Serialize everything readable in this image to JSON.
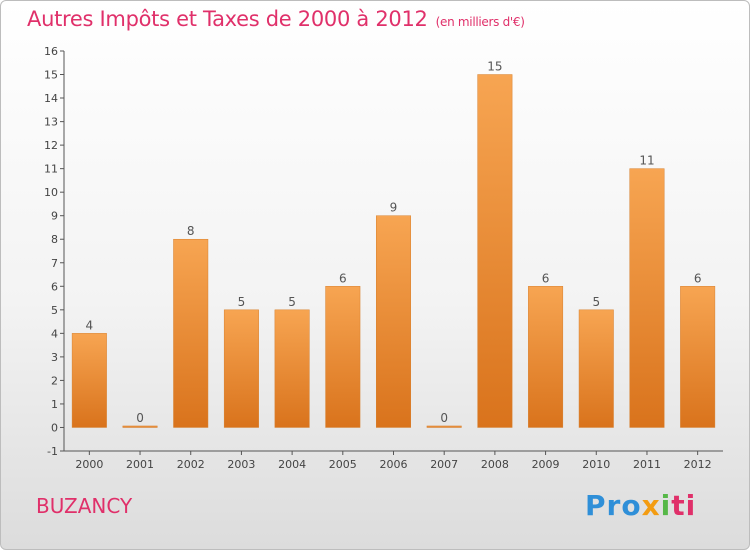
{
  "header": {
    "title": "Autres Impôts et Taxes de 2000 à 2012",
    "subtitle": "(en milliers d'€)"
  },
  "footer": {
    "commune": "BUZANCY",
    "logo": [
      "Pro",
      "x",
      "i",
      "ti"
    ]
  },
  "colors": {
    "accent": "#e0306a",
    "bar_top": "#f7a552",
    "bar_bottom": "#d9731c"
  },
  "chart_data": {
    "type": "bar",
    "categories": [
      "2000",
      "2001",
      "2002",
      "2003",
      "2004",
      "2005",
      "2006",
      "2007",
      "2008",
      "2009",
      "2010",
      "2011",
      "2012"
    ],
    "values": [
      4,
      0,
      8,
      5,
      5,
      6,
      9,
      0,
      15,
      6,
      5,
      11,
      6
    ],
    "title": "Autres Impôts et Taxes de 2000 à 2012",
    "subtitle": "(en milliers d'€)",
    "xlabel": "",
    "ylabel": "",
    "ylim": [
      -1,
      16
    ],
    "yticks": [
      -1,
      0,
      1,
      2,
      3,
      4,
      5,
      6,
      7,
      8,
      9,
      10,
      11,
      12,
      13,
      14,
      15,
      16
    ],
    "grid": false,
    "legend": "none"
  }
}
